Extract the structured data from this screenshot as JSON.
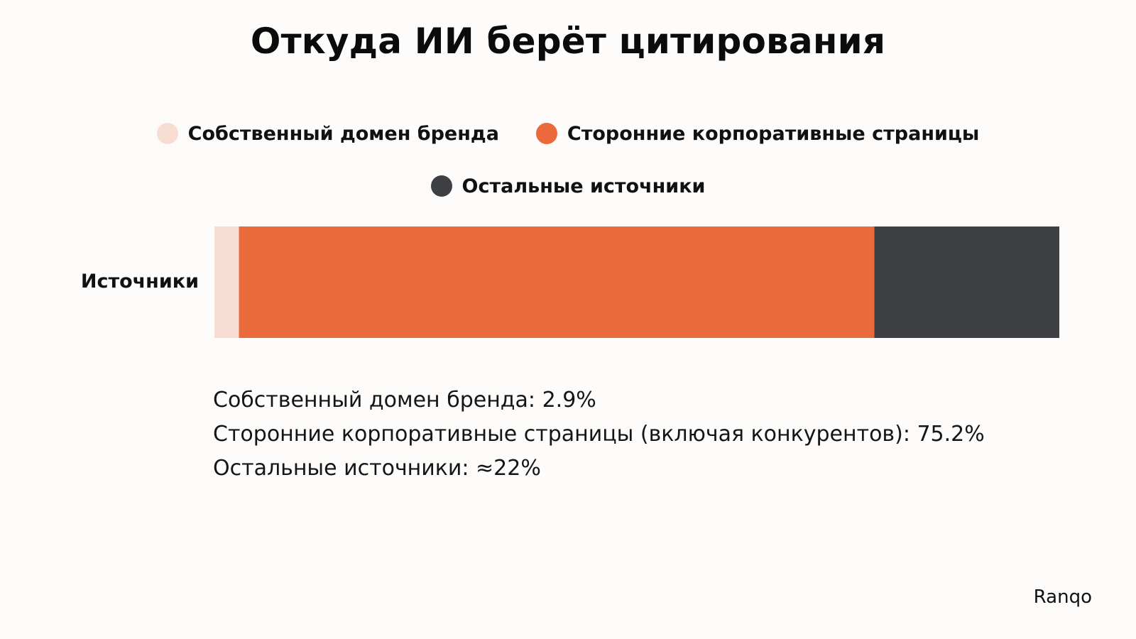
{
  "chart_data": {
    "type": "bar",
    "orientation": "horizontal",
    "stacked": true,
    "title": "Откуда ИИ берёт цитирования",
    "categories": [
      "Источники"
    ],
    "series": [
      {
        "name": "Собственный домен бренда",
        "values": [
          2.9
        ],
        "color": "#f8ddd3"
      },
      {
        "name": "Сторонние корпоративные страницы",
        "values": [
          75.2
        ],
        "color": "#ea6a3b"
      },
      {
        "name": "Остальные источники",
        "values": [
          21.9
        ],
        "color": "#3f4043"
      }
    ],
    "xlim": [
      0,
      100
    ],
    "grid": false,
    "legend_position": "top-center"
  },
  "notes": [
    "Собственный домен бренда: 2.9%",
    "Сторонние корпоративные страницы (включая конкурентов): 75.2%",
    "Остальные источники: ≈22%"
  ],
  "brand": "Ranqo"
}
